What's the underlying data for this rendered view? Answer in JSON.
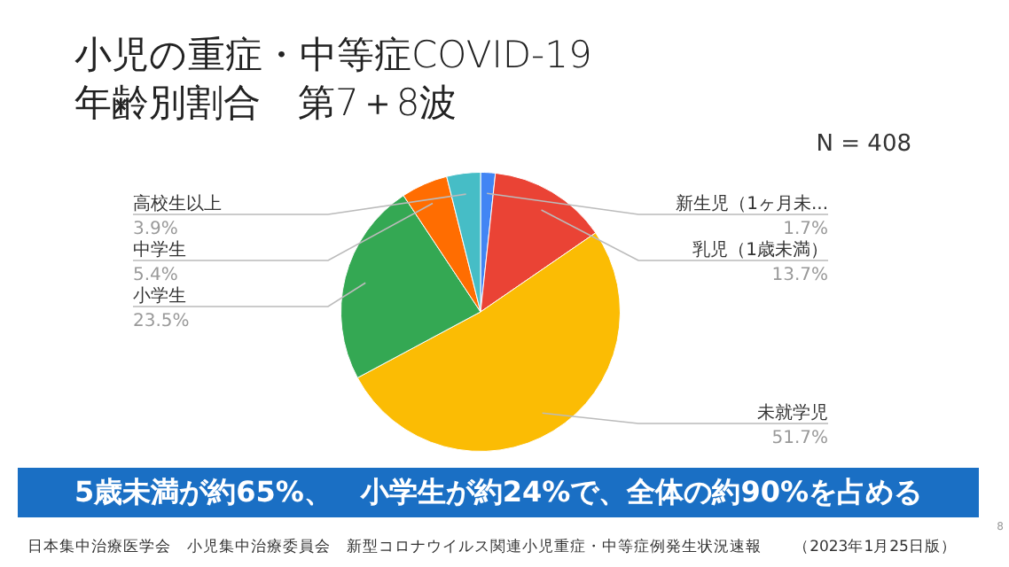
{
  "chart_data": {
    "type": "pie",
    "title": "小児の重症・中等症COVID-19\n年齢別割合　第7＋8波",
    "categories": [
      "新生児（1ヶ月未...",
      "乳児（1歳未満）",
      "未就学児",
      "小学生",
      "中学生",
      "高校生以上"
    ],
    "values": [
      1.7,
      13.7,
      51.7,
      23.5,
      5.4,
      3.9
    ],
    "value_labels": [
      "1.7%",
      "13.7%",
      "51.7%",
      "23.5%",
      "5.4%",
      "3.9%"
    ],
    "colors": [
      "#4285f4",
      "#ea4335",
      "#fbbc04",
      "#34a853",
      "#ff6d01",
      "#46bdc6"
    ],
    "legend": false,
    "annotations": [
      "N = 408",
      "5歳未満が約65%、　小学生が約24%で、全体の約90%を占める",
      "日本集中治療医学会　小児集中治療委員会　新型コロナウイルス関連小児重症・中等症例発生状況速報　　（2023年1月25日版）",
      "8"
    ]
  }
}
